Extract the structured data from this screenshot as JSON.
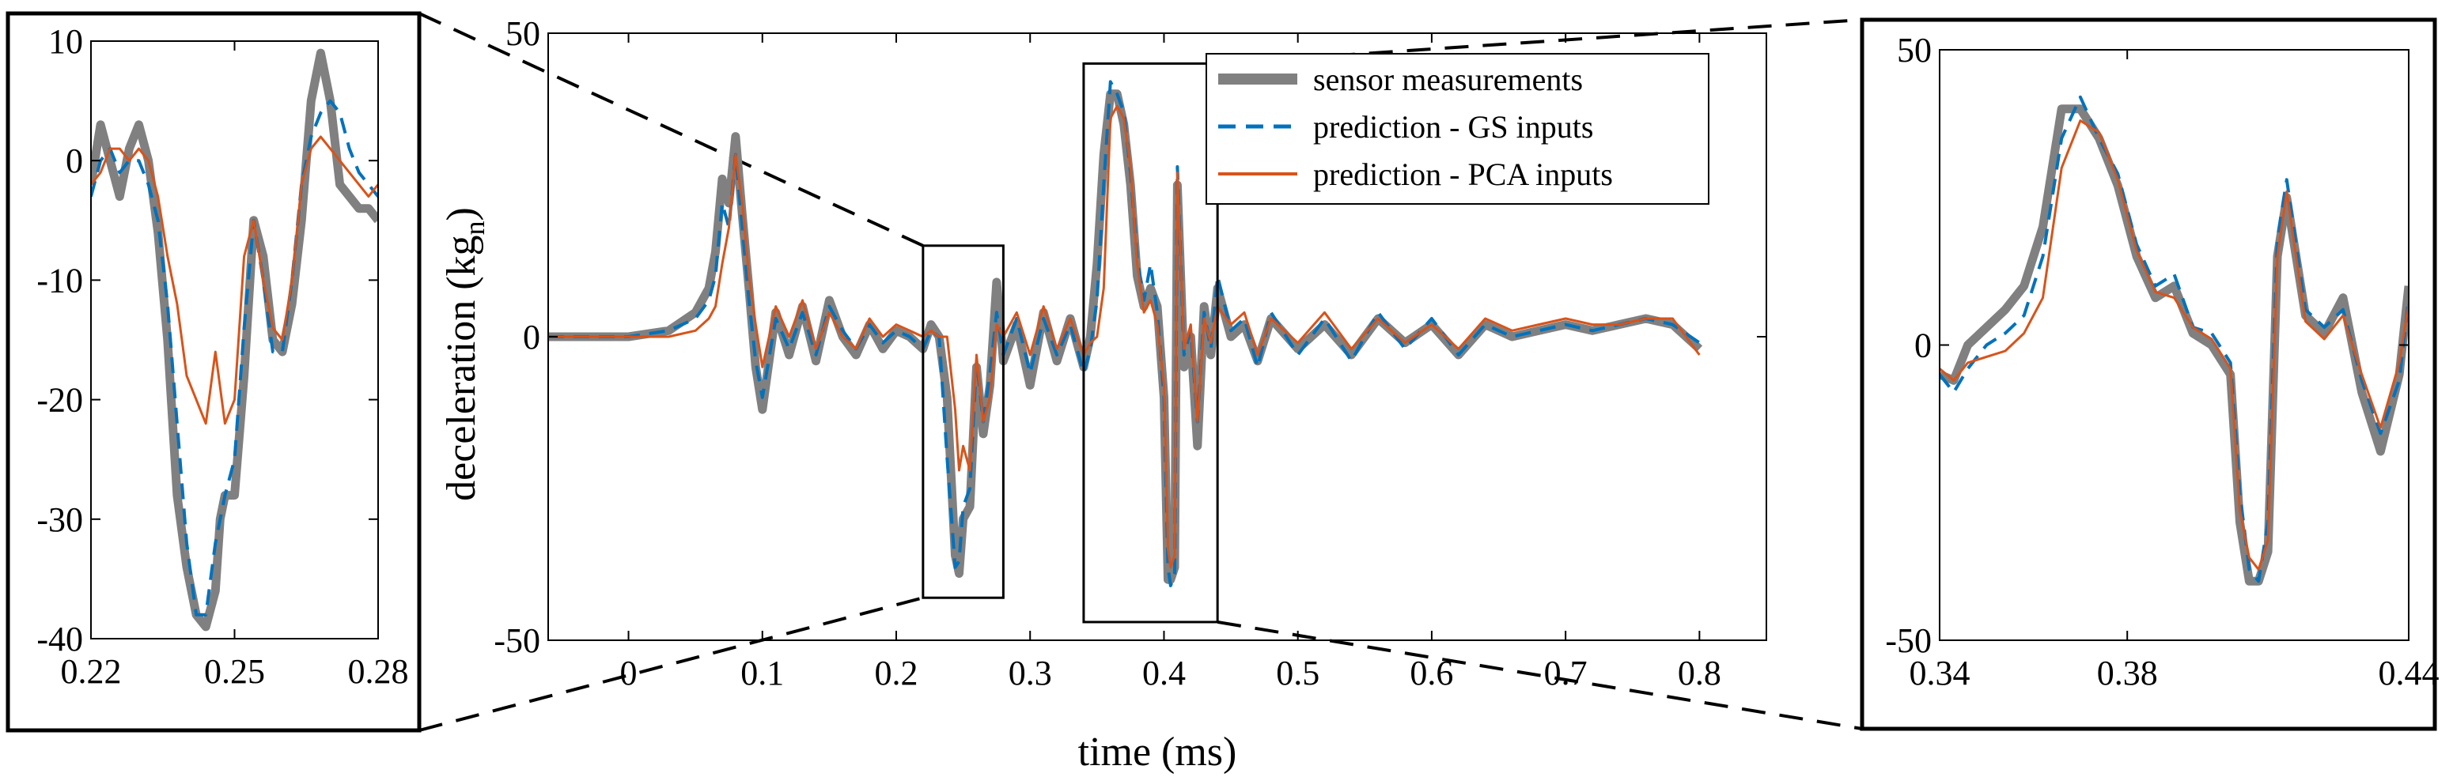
{
  "colors": {
    "sensor": "#808080",
    "gs": "#0072BD",
    "pca": "#D95319"
  },
  "chart_data": [
    {
      "id": "main",
      "type": "line",
      "xlabel": "time (ms)",
      "ylabel": "deceleration (kg",
      "ylabel_sub": "n",
      "ylabel_close": ")",
      "xlim": [
        -0.06,
        0.85
      ],
      "ylim": [
        -50,
        50
      ],
      "xticks": [
        0,
        0.1,
        0.2,
        0.3,
        0.4,
        0.5,
        0.6,
        0.7,
        0.8
      ],
      "xtick_labels": [
        "0",
        "0.1",
        "0.2",
        "0.3",
        "0.4",
        "0.5",
        "0.6",
        "0.7",
        "0.8"
      ],
      "yticks": [
        -50,
        0,
        50
      ],
      "ytick_labels": [
        "-50",
        "0",
        "50"
      ],
      "legend": {
        "placement": "top-right",
        "entries": [
          "sensor measurements",
          "prediction - GS inputs",
          "prediction - PCA inputs"
        ]
      },
      "zoom_boxes": [
        {
          "x": [
            0.22,
            0.28
          ],
          "y": [
            -43,
            15
          ]
        },
        {
          "x": [
            0.34,
            0.44
          ],
          "y": [
            -47,
            45
          ]
        }
      ],
      "series": [
        {
          "name": "sensor measurements",
          "x": [
            -0.06,
            0.0,
            0.03,
            0.05,
            0.06,
            0.065,
            0.07,
            0.075,
            0.08,
            0.085,
            0.09,
            0.095,
            0.1,
            0.11,
            0.12,
            0.13,
            0.14,
            0.15,
            0.16,
            0.17,
            0.18,
            0.19,
            0.2,
            0.21,
            0.22,
            0.226,
            0.232,
            0.238,
            0.244,
            0.247,
            0.25,
            0.255,
            0.26,
            0.265,
            0.27,
            0.275,
            0.28,
            0.29,
            0.3,
            0.31,
            0.32,
            0.33,
            0.34,
            0.345,
            0.35,
            0.355,
            0.36,
            0.365,
            0.37,
            0.375,
            0.38,
            0.385,
            0.39,
            0.395,
            0.4,
            0.403,
            0.405,
            0.408,
            0.41,
            0.415,
            0.42,
            0.425,
            0.43,
            0.435,
            0.44,
            0.45,
            0.46,
            0.47,
            0.48,
            0.5,
            0.52,
            0.54,
            0.56,
            0.58,
            0.6,
            0.62,
            0.64,
            0.66,
            0.68,
            0.7,
            0.72,
            0.74,
            0.76,
            0.78,
            0.8
          ],
          "y": [
            0,
            0,
            1,
            4,
            8,
            14,
            26,
            22,
            33,
            20,
            8,
            -5,
            -12,
            4,
            -3,
            5,
            -4,
            6,
            0,
            -3,
            2,
            -2,
            1,
            0,
            -2,
            2,
            0,
            -10,
            -36,
            -39,
            -30,
            -28,
            -5,
            -16,
            -8,
            9,
            -4,
            2,
            -8,
            4,
            -4,
            3,
            -5,
            0,
            12,
            30,
            40,
            40,
            35,
            25,
            10,
            5,
            8,
            5,
            -10,
            -40,
            -40,
            -38,
            25,
            -5,
            0,
            -18,
            5,
            -3,
            8,
            0,
            2,
            -4,
            3,
            -2,
            2,
            -3,
            3,
            -1,
            2,
            -3,
            2,
            0,
            1,
            2,
            1,
            2,
            3,
            2,
            -2
          ]
        },
        {
          "name": "prediction - GS inputs",
          "x": [
            -0.06,
            0.0,
            0.03,
            0.05,
            0.06,
            0.065,
            0.07,
            0.075,
            0.08,
            0.085,
            0.09,
            0.095,
            0.1,
            0.11,
            0.12,
            0.13,
            0.14,
            0.15,
            0.16,
            0.17,
            0.18,
            0.19,
            0.2,
            0.21,
            0.22,
            0.226,
            0.232,
            0.238,
            0.244,
            0.247,
            0.25,
            0.255,
            0.26,
            0.265,
            0.27,
            0.275,
            0.28,
            0.29,
            0.3,
            0.31,
            0.32,
            0.33,
            0.34,
            0.345,
            0.35,
            0.355,
            0.36,
            0.365,
            0.37,
            0.375,
            0.38,
            0.385,
            0.39,
            0.395,
            0.4,
            0.403,
            0.405,
            0.408,
            0.41,
            0.415,
            0.42,
            0.425,
            0.43,
            0.435,
            0.44,
            0.45,
            0.46,
            0.47,
            0.48,
            0.5,
            0.52,
            0.54,
            0.56,
            0.58,
            0.6,
            0.62,
            0.64,
            0.66,
            0.68,
            0.7,
            0.72,
            0.74,
            0.76,
            0.78,
            0.8
          ],
          "y": [
            0,
            0,
            1,
            3,
            6,
            10,
            22,
            18,
            30,
            18,
            6,
            -4,
            -10,
            3,
            -2,
            4,
            -3,
            5,
            1,
            -2,
            2,
            -1,
            1,
            0,
            -2,
            1,
            0,
            -20,
            -38,
            -37,
            -28,
            -25,
            -4,
            -14,
            -6,
            4,
            -3,
            3,
            -6,
            3,
            -3,
            2,
            -6,
            -2,
            6,
            25,
            42,
            40,
            37,
            27,
            13,
            6,
            12,
            4,
            -10,
            -38,
            -41,
            -39,
            28,
            -3,
            1,
            -14,
            4,
            -2,
            10,
            1,
            3,
            -5,
            4,
            -3,
            3,
            -4,
            4,
            -2,
            3,
            -3,
            2,
            0,
            1,
            2,
            1,
            2,
            3,
            2,
            -1
          ]
        },
        {
          "name": "prediction - PCA inputs",
          "x": [
            -0.06,
            0.0,
            0.03,
            0.05,
            0.06,
            0.065,
            0.07,
            0.075,
            0.08,
            0.085,
            0.09,
            0.095,
            0.1,
            0.11,
            0.12,
            0.13,
            0.14,
            0.15,
            0.16,
            0.17,
            0.18,
            0.19,
            0.2,
            0.21,
            0.22,
            0.226,
            0.232,
            0.238,
            0.244,
            0.247,
            0.25,
            0.255,
            0.26,
            0.265,
            0.27,
            0.275,
            0.28,
            0.29,
            0.3,
            0.31,
            0.32,
            0.33,
            0.34,
            0.345,
            0.35,
            0.355,
            0.36,
            0.365,
            0.37,
            0.375,
            0.38,
            0.385,
            0.39,
            0.395,
            0.4,
            0.403,
            0.405,
            0.408,
            0.41,
            0.415,
            0.42,
            0.425,
            0.43,
            0.435,
            0.44,
            0.45,
            0.46,
            0.47,
            0.48,
            0.5,
            0.52,
            0.54,
            0.56,
            0.58,
            0.6,
            0.62,
            0.64,
            0.66,
            0.68,
            0.7,
            0.72,
            0.74,
            0.76,
            0.78,
            0.8
          ],
          "y": [
            0,
            0,
            0,
            1,
            3,
            5,
            12,
            18,
            30,
            22,
            10,
            2,
            -5,
            5,
            0,
            6,
            -2,
            4,
            0,
            -2,
            3,
            0,
            2,
            1,
            0,
            1,
            0,
            0,
            -12,
            -22,
            -18,
            -22,
            -3,
            -14,
            -10,
            2,
            0,
            4,
            -3,
            5,
            -2,
            3,
            -3,
            -1,
            0,
            8,
            36,
            38,
            36,
            28,
            12,
            4,
            6,
            2,
            -8,
            -35,
            -38,
            -36,
            27,
            -2,
            2,
            -14,
            3,
            -1,
            5,
            2,
            4,
            -3,
            3,
            -1,
            4,
            -2,
            3,
            -1,
            2,
            -2,
            3,
            1,
            2,
            3,
            2,
            2,
            3,
            3,
            -3
          ]
        }
      ]
    },
    {
      "id": "inset-left",
      "type": "line",
      "xlim": [
        0.22,
        0.28
      ],
      "ylim": [
        -40,
        10
      ],
      "xticks": [
        0.22,
        0.25,
        0.28
      ],
      "xtick_labels": [
        "0.22",
        "0.25",
        "0.28"
      ],
      "yticks": [
        10,
        0,
        -10,
        -20,
        -30,
        -40
      ],
      "ytick_labels": [
        "10",
        "0",
        "-10",
        "-20",
        "-30",
        "-40"
      ],
      "series": [
        {
          "name": "sensor measurements",
          "x": [
            0.22,
            0.222,
            0.224,
            0.226,
            0.228,
            0.23,
            0.232,
            0.234,
            0.236,
            0.238,
            0.24,
            0.242,
            0.244,
            0.246,
            0.247,
            0.248,
            0.25,
            0.252,
            0.254,
            0.256,
            0.258,
            0.26,
            0.262,
            0.264,
            0.266,
            0.268,
            0.27,
            0.272,
            0.274,
            0.276,
            0.278,
            0.28
          ],
          "y": [
            -2,
            3,
            0,
            -3,
            1,
            3,
            0,
            -6,
            -15,
            -28,
            -34,
            -38,
            -39,
            -36,
            -30,
            -28,
            -28,
            -18,
            -5,
            -8,
            -15,
            -16,
            -12,
            -5,
            5,
            9,
            5,
            -2,
            -3,
            -4,
            -4,
            -5
          ]
        },
        {
          "name": "prediction - GS inputs",
          "x": [
            0.22,
            0.222,
            0.224,
            0.226,
            0.228,
            0.23,
            0.232,
            0.234,
            0.236,
            0.238,
            0.24,
            0.242,
            0.244,
            0.246,
            0.248,
            0.25,
            0.252,
            0.254,
            0.256,
            0.258,
            0.26,
            0.262,
            0.264,
            0.266,
            0.268,
            0.27,
            0.272,
            0.274,
            0.276,
            0.278,
            0.28
          ],
          "y": [
            -3,
            0,
            1,
            -1,
            0,
            0,
            -2,
            -5,
            -12,
            -22,
            -32,
            -38,
            -38,
            -32,
            -28,
            -25,
            -14,
            -5,
            -10,
            -16,
            -16,
            -10,
            -2,
            2,
            4,
            5,
            4,
            1,
            -1,
            -2,
            -3
          ]
        },
        {
          "name": "prediction - PCA inputs",
          "x": [
            0.22,
            0.222,
            0.224,
            0.226,
            0.228,
            0.23,
            0.232,
            0.234,
            0.236,
            0.238,
            0.24,
            0.242,
            0.244,
            0.246,
            0.248,
            0.25,
            0.252,
            0.254,
            0.256,
            0.258,
            0.26,
            0.262,
            0.264,
            0.266,
            0.268,
            0.27,
            0.272,
            0.274,
            0.276,
            0.278,
            0.28
          ],
          "y": [
            -2,
            -1,
            1,
            1,
            0,
            1,
            0,
            -3,
            -8,
            -12,
            -18,
            -20,
            -22,
            -16,
            -22,
            -20,
            -8,
            -5,
            -10,
            -14,
            -15,
            -10,
            -2,
            1,
            2,
            1,
            0,
            -1,
            -2,
            -3,
            -2
          ]
        }
      ]
    },
    {
      "id": "inset-right",
      "type": "line",
      "xlim": [
        0.34,
        0.44
      ],
      "ylim": [
        -50,
        50
      ],
      "xticks": [
        0.34,
        0.38,
        0.44
      ],
      "xtick_labels": [
        "0.34",
        "0.38",
        "0.44"
      ],
      "yticks": [
        50,
        0,
        -50
      ],
      "ytick_labels": [
        "50",
        "0",
        "-50"
      ],
      "series": [
        {
          "name": "sensor measurements",
          "x": [
            0.34,
            0.343,
            0.346,
            0.35,
            0.354,
            0.358,
            0.362,
            0.366,
            0.37,
            0.374,
            0.378,
            0.382,
            0.386,
            0.39,
            0.394,
            0.398,
            0.402,
            0.404,
            0.406,
            0.408,
            0.41,
            0.412,
            0.414,
            0.418,
            0.422,
            0.426,
            0.43,
            0.434,
            0.438,
            0.44
          ],
          "y": [
            -5,
            -6,
            0,
            3,
            6,
            10,
            20,
            40,
            40,
            35,
            27,
            15,
            8,
            10,
            2,
            0,
            -5,
            -30,
            -40,
            -40,
            -35,
            15,
            25,
            5,
            2,
            8,
            -8,
            -18,
            -5,
            10
          ]
        },
        {
          "name": "prediction - GS inputs",
          "x": [
            0.34,
            0.343,
            0.346,
            0.35,
            0.354,
            0.358,
            0.362,
            0.366,
            0.37,
            0.374,
            0.378,
            0.382,
            0.386,
            0.39,
            0.394,
            0.398,
            0.402,
            0.404,
            0.406,
            0.408,
            0.41,
            0.412,
            0.414,
            0.418,
            0.422,
            0.426,
            0.43,
            0.434,
            0.438,
            0.44
          ],
          "y": [
            -5,
            -8,
            -4,
            0,
            2,
            5,
            15,
            35,
            42,
            35,
            29,
            17,
            10,
            12,
            3,
            2,
            -3,
            -25,
            -38,
            -40,
            -30,
            18,
            28,
            6,
            3,
            6,
            -6,
            -15,
            -6,
            8
          ]
        },
        {
          "name": "prediction - PCA inputs",
          "x": [
            0.34,
            0.343,
            0.346,
            0.35,
            0.354,
            0.358,
            0.362,
            0.366,
            0.37,
            0.374,
            0.378,
            0.382,
            0.386,
            0.39,
            0.394,
            0.398,
            0.402,
            0.404,
            0.406,
            0.408,
            0.41,
            0.412,
            0.414,
            0.418,
            0.422,
            0.426,
            0.43,
            0.434,
            0.438,
            0.44
          ],
          "y": [
            -4,
            -6,
            -3,
            -2,
            -1,
            2,
            8,
            30,
            38,
            36,
            28,
            16,
            9,
            8,
            3,
            1,
            -4,
            -28,
            -36,
            -38,
            -33,
            15,
            26,
            4,
            1,
            5,
            -5,
            -14,
            -3,
            7
          ]
        }
      ]
    }
  ]
}
